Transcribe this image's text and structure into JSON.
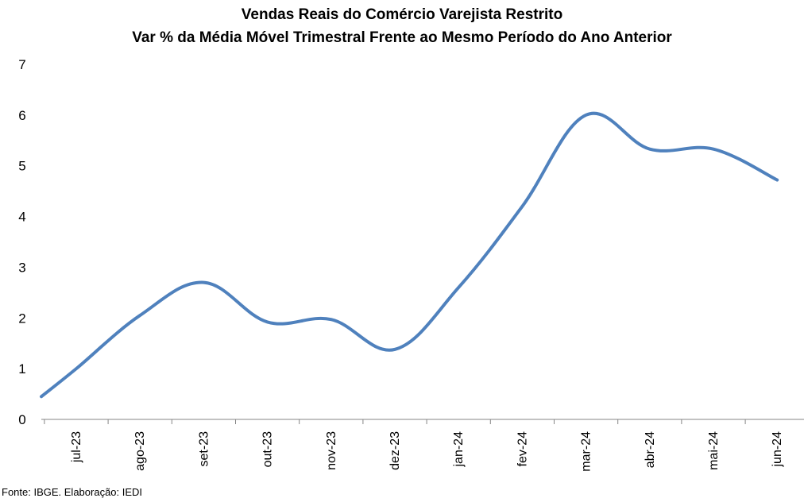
{
  "chart_data": {
    "type": "line",
    "title": "Vendas Reais do Comércio Varejista Restrito",
    "subtitle": "Var % da Média Móvel Trimestral Frente ao Mesmo Período do Ano Anterior",
    "xlabel": "",
    "ylabel": "",
    "categories": [
      "jul-23",
      "ago-23",
      "set-23",
      "out-23",
      "nov-23",
      "dez-23",
      "jan-24",
      "fev-24",
      "mar-24",
      "abr-24",
      "mai-24",
      "jun-24"
    ],
    "series": [
      {
        "values": [
          1.0,
          2.05,
          2.7,
          1.92,
          1.97,
          1.38,
          2.6,
          4.2,
          6.0,
          5.33,
          5.33,
          4.72
        ]
      }
    ],
    "x_start_value": 0.45,
    "ylim": [
      0,
      7
    ],
    "yticks": [
      0,
      1,
      2,
      3,
      4,
      5,
      6,
      7
    ],
    "grid": false,
    "legend": "none",
    "line_color": "#4F81BD"
  },
  "source": "Fonte: IBGE. Elaboração: IEDI"
}
